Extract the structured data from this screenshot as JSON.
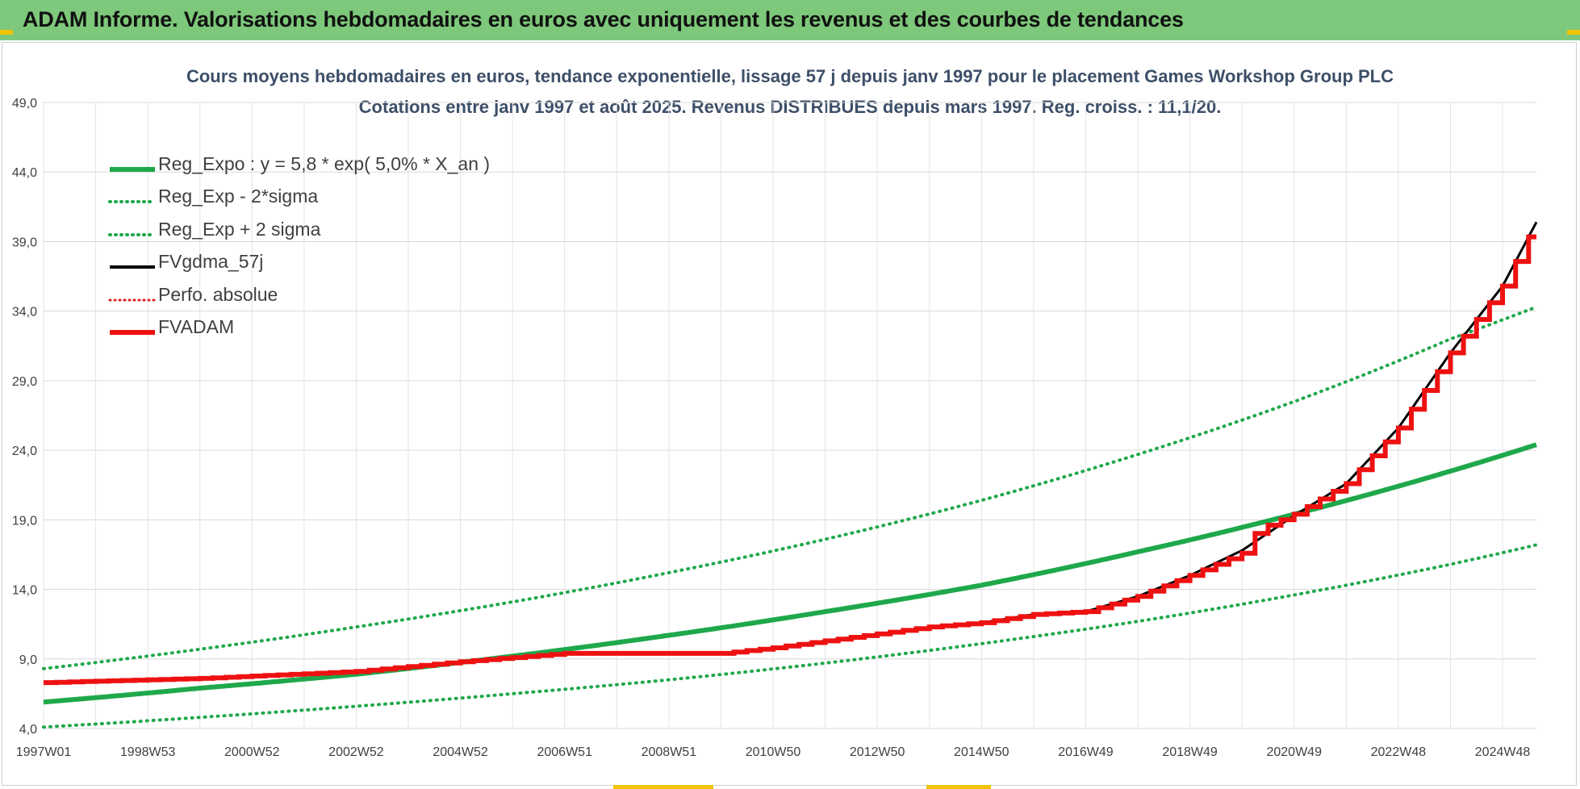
{
  "banner": {
    "title": "ADAM Informe. Valorisations hebdomadaires en euros avec uniquement les revenus et des courbes de tendances",
    "background": "#7dc87a"
  },
  "chart_data": {
    "type": "line",
    "title_line1": "Cours moyens hebdomadaires en euros, tendance exponentielle, lissage 57 j depuis janv 1997 pour le placement Games Workshop Group PLC",
    "title_line2": "Cotations entre janv 1997 et août 2025.  Revenus DISTRIBUES depuis mars 1997. Reg. croiss. : 11,1/20.",
    "xlabel": "",
    "ylabel": "",
    "xlim": [
      1997.0,
      2025.65
    ],
    "ylim": [
      4.0,
      49.0
    ],
    "y_ticks": [
      "4,0",
      "9,0",
      "14,0",
      "19,0",
      "24,0",
      "29,0",
      "34,0",
      "39,0",
      "44,0",
      "49,0"
    ],
    "x_ticks": [
      {
        "label": "1997W01",
        "x": 1997.0
      },
      {
        "label": "1998W53",
        "x": 1999.0
      },
      {
        "label": "2000W52",
        "x": 2001.0
      },
      {
        "label": "2002W52",
        "x": 2003.0
      },
      {
        "label": "2004W52",
        "x": 2005.0
      },
      {
        "label": "2006W51",
        "x": 2007.0
      },
      {
        "label": "2008W51",
        "x": 2009.0
      },
      {
        "label": "2010W50",
        "x": 2011.0
      },
      {
        "label": "2012W50",
        "x": 2013.0
      },
      {
        "label": "2014W50",
        "x": 2015.0
      },
      {
        "label": "2016W49",
        "x": 2017.0
      },
      {
        "label": "2018W49",
        "x": 2019.0
      },
      {
        "label": "2020W49",
        "x": 2021.0
      },
      {
        "label": "2022W48",
        "x": 2023.0
      },
      {
        "label": "2024W48",
        "x": 2025.0
      }
    ],
    "grid": true,
    "legend_position": "top-left",
    "series": [
      {
        "name": "Reg_Expo : y = 5,8 * exp( 5,0% *  X_an )",
        "color": "#1fa84b",
        "style": "solid",
        "points": [
          [
            1997.0,
            5.9
          ],
          [
            2000.0,
            6.9
          ],
          [
            2003.0,
            7.9
          ],
          [
            2006.0,
            9.2
          ],
          [
            2009.0,
            10.7
          ],
          [
            2012.0,
            12.4
          ],
          [
            2015.0,
            14.3
          ],
          [
            2018.0,
            16.7
          ],
          [
            2021.0,
            19.4
          ],
          [
            2024.0,
            22.5
          ],
          [
            2025.65,
            24.4
          ]
        ]
      },
      {
        "name": "Reg_Exp - 2*sigma",
        "color": "#1fa84b",
        "style": "dotted",
        "points": [
          [
            1997.0,
            4.1
          ],
          [
            2000.0,
            4.8
          ],
          [
            2003.0,
            5.6
          ],
          [
            2006.0,
            6.5
          ],
          [
            2009.0,
            7.5
          ],
          [
            2012.0,
            8.7
          ],
          [
            2015.0,
            10.1
          ],
          [
            2018.0,
            11.7
          ],
          [
            2021.0,
            13.6
          ],
          [
            2024.0,
            15.8
          ],
          [
            2025.65,
            17.2
          ]
        ]
      },
      {
        "name": "Reg_Exp + 2 sigma",
        "color": "#1fa84b",
        "style": "dotted",
        "points": [
          [
            1997.0,
            8.3
          ],
          [
            2000.0,
            9.7
          ],
          [
            2003.0,
            11.3
          ],
          [
            2006.0,
            13.1
          ],
          [
            2009.0,
            15.2
          ],
          [
            2012.0,
            17.6
          ],
          [
            2015.0,
            20.4
          ],
          [
            2018.0,
            23.7
          ],
          [
            2021.0,
            27.5
          ],
          [
            2024.0,
            32.0
          ],
          [
            2025.65,
            34.3
          ]
        ]
      },
      {
        "name": "FVgdma_57j",
        "color": "#000000",
        "style": "solid",
        "points": [
          [
            1997.0,
            7.3
          ],
          [
            2000.0,
            7.6
          ],
          [
            2003.0,
            8.1
          ],
          [
            2005.0,
            8.8
          ],
          [
            2007.0,
            9.4
          ],
          [
            2010.0,
            9.4
          ],
          [
            2011.0,
            9.8
          ],
          [
            2013.0,
            10.8
          ],
          [
            2015.0,
            11.6
          ],
          [
            2016.0,
            12.2
          ],
          [
            2017.0,
            12.4
          ],
          [
            2018.0,
            13.5
          ],
          [
            2019.0,
            15.0
          ],
          [
            2020.0,
            16.8
          ],
          [
            2021.0,
            19.3
          ],
          [
            2022.0,
            21.6
          ],
          [
            2023.0,
            25.6
          ],
          [
            2024.0,
            31.0
          ],
          [
            2025.0,
            35.8
          ],
          [
            2025.65,
            40.4
          ]
        ]
      },
      {
        "name": "Perfo. absolue",
        "color": "#e02020",
        "style": "dotted",
        "points": []
      },
      {
        "name": "FVADAM",
        "color": "#ee1111",
        "style": "solid-step",
        "points": [
          [
            1997.0,
            7.3
          ],
          [
            2000.0,
            7.6
          ],
          [
            2003.0,
            8.1
          ],
          [
            2005.0,
            8.8
          ],
          [
            2007.0,
            9.4
          ],
          [
            2010.0,
            9.4
          ],
          [
            2011.0,
            9.8
          ],
          [
            2013.0,
            10.8
          ],
          [
            2014.0,
            11.3
          ],
          [
            2015.0,
            11.6
          ],
          [
            2016.0,
            12.2
          ],
          [
            2017.0,
            12.4
          ],
          [
            2018.0,
            13.5
          ],
          [
            2019.0,
            15.0
          ],
          [
            2020.0,
            16.6
          ],
          [
            2020.3,
            18.3
          ],
          [
            2021.0,
            19.4
          ],
          [
            2022.0,
            21.6
          ],
          [
            2023.0,
            25.6
          ],
          [
            2024.0,
            31.0
          ],
          [
            2025.0,
            35.8
          ],
          [
            2025.65,
            40.4
          ]
        ]
      }
    ]
  }
}
